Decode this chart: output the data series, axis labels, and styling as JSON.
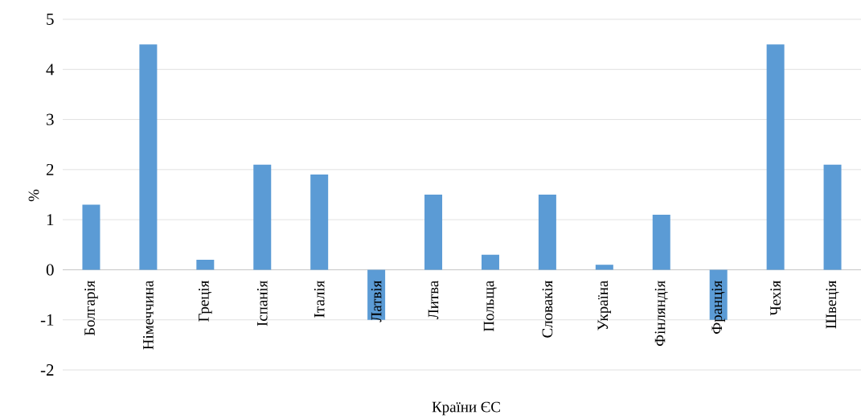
{
  "chart_data": {
    "type": "bar",
    "xlabel": "Країни ЄС",
    "ylabel": "%",
    "categories": [
      "Болгарія",
      "Німеччина",
      "Греція",
      "Іспанія",
      "Італія",
      "Латвія",
      "Литва",
      "Польща",
      "Словакія",
      "Україна",
      "Фінляндія",
      "Франція",
      "Чехія",
      "Швеція"
    ],
    "values": [
      1.3,
      4.5,
      0.2,
      2.1,
      1.9,
      -1.0,
      1.5,
      0.3,
      1.5,
      0.1,
      1.1,
      -1.0,
      4.5,
      2.1
    ],
    "color": "#5b9bd5",
    "ylim": [
      -2,
      5
    ],
    "yticks": [
      -2,
      -1,
      0,
      1,
      2,
      3,
      4,
      5
    ],
    "grid": "y"
  }
}
